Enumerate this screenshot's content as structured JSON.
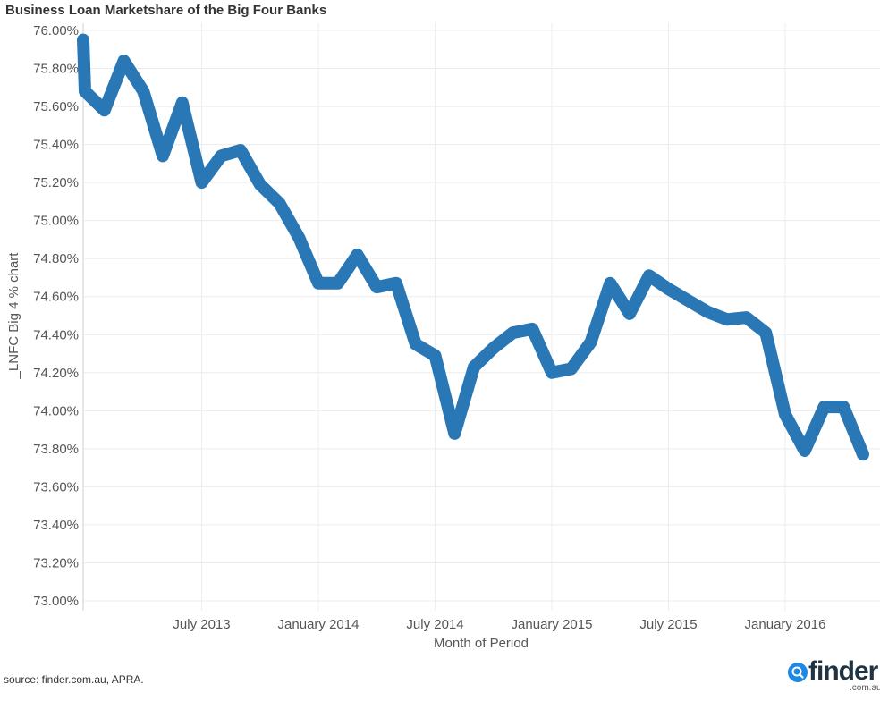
{
  "title": "Business Loan Marketshare of the Big Four Banks",
  "source": "source: finder.com.au, APRA.",
  "logo": {
    "word": "finder",
    "sub": ".com.au",
    "icon": "magnifier-icon"
  },
  "colors": {
    "line": "#2a77b5",
    "grid": "#ececec",
    "logo_blue": "#1e88e5"
  },
  "chart_data": {
    "type": "line",
    "title": "Business Loan Marketshare of the Big Four Banks",
    "xlabel": "Month of Period",
    "ylabel": "_LNFC Big 4 % chart",
    "ylim": [
      73.0,
      76.0
    ],
    "yticks": [
      76.0,
      75.8,
      75.6,
      75.4,
      75.2,
      75.0,
      74.8,
      74.6,
      74.4,
      74.2,
      74.0,
      73.8,
      73.6,
      73.4,
      73.2,
      73.0
    ],
    "ytick_labels": [
      "76.00%",
      "75.80%",
      "75.60%",
      "75.40%",
      "75.20%",
      "75.00%",
      "74.80%",
      "74.60%",
      "74.40%",
      "74.20%",
      "74.00%",
      "73.80%",
      "73.60%",
      "73.40%",
      "73.20%",
      "73.00%"
    ],
    "xticks": [
      "July 2013",
      "January 2014",
      "July 2014",
      "January 2015",
      "July 2015",
      "January 2016"
    ],
    "grid": true,
    "series": [
      {
        "x": [
          "2013-01",
          "2013-01",
          "2013-02",
          "2013-03",
          "2013-04",
          "2013-05",
          "2013-06",
          "2013-07",
          "2013-08",
          "2013-09",
          "2013-10",
          "2013-11",
          "2013-12",
          "2014-01",
          "2014-02",
          "2014-03",
          "2014-04",
          "2014-05",
          "2014-06",
          "2014-07",
          "2014-08",
          "2014-09",
          "2014-10",
          "2014-11",
          "2014-12",
          "2015-01",
          "2015-02",
          "2015-03",
          "2015-04",
          "2015-05",
          "2015-06",
          "2015-07",
          "2015-08",
          "2015-09",
          "2015-10",
          "2015-11",
          "2015-12",
          "2016-01",
          "2016-02",
          "2016-03",
          "2016-04",
          "2016-05"
        ],
        "y": [
          75.95,
          75.68,
          75.58,
          75.84,
          75.68,
          75.34,
          75.62,
          75.2,
          75.34,
          75.37,
          75.19,
          75.09,
          74.91,
          74.67,
          74.67,
          74.82,
          74.65,
          74.67,
          74.35,
          74.29,
          73.88,
          74.23,
          74.33,
          74.41,
          74.43,
          74.2,
          74.22,
          74.36,
          74.67,
          74.51,
          74.71,
          74.64,
          74.58,
          74.52,
          74.48,
          74.49,
          74.41,
          73.98,
          73.79,
          74.02,
          74.02,
          73.77
        ]
      }
    ]
  }
}
